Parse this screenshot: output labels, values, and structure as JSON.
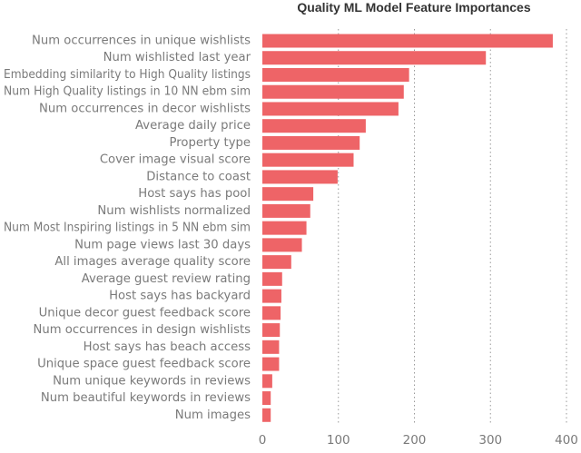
{
  "chart_data": {
    "type": "bar",
    "orientation": "horizontal",
    "title": "Quality ML Model Feature Importances",
    "xlabel": "",
    "ylabel": "",
    "xlim": [
      0,
      400
    ],
    "xticks": [
      0,
      100,
      200,
      300,
      400
    ],
    "grid": "vertical-dotted",
    "bar_color": "#ee6467",
    "categories": [
      "Num occurrences in unique wishlists",
      "Num wishlisted last year",
      "Embedding similarity to High Quality listings",
      "Num High Quality listings in 10 NN ebm sim",
      "Num occurrences in decor wishlists",
      "Average daily price",
      "Property type",
      "Cover image visual score",
      "Distance to coast",
      "Host says has pool",
      "Num wishlists normalized",
      "Num Most Inspiring listings in 5 NN ebm sim",
      "Num page views last 30 days",
      "All images average quality score",
      "Average guest review rating",
      "Host says has backyard",
      "Unique decor guest feedback score",
      "Num occurrences in design wishlists",
      "Host says has beach access",
      "Unique space guest feedback score",
      "Num unique keywords in reviews",
      "Num beautiful keywords in reviews",
      "Num images"
    ],
    "values": [
      382,
      294,
      193,
      186,
      179,
      136,
      128,
      120,
      99,
      67,
      63,
      58,
      52,
      38,
      26,
      25,
      24,
      23,
      22,
      22,
      13,
      11,
      11
    ]
  }
}
